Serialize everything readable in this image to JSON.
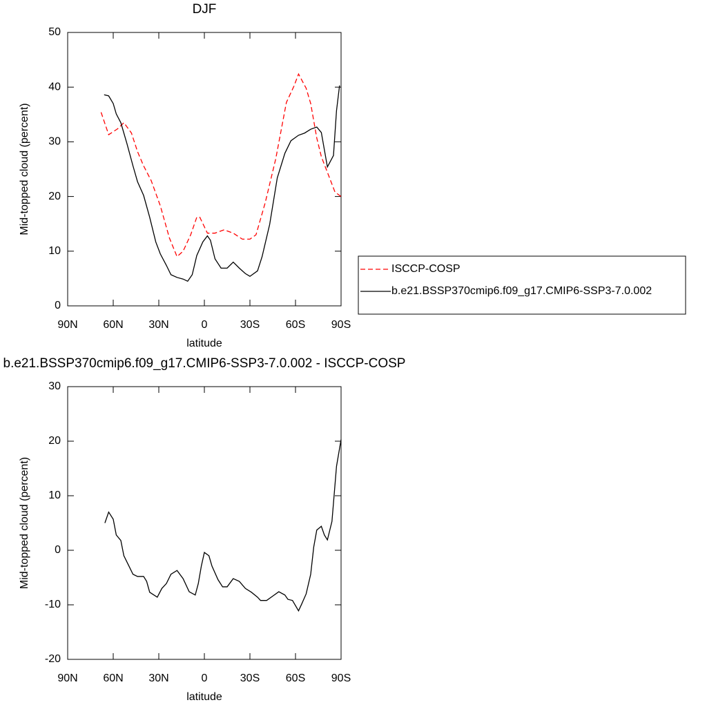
{
  "chart_data": [
    {
      "type": "line",
      "title": "DJF",
      "xlabel": "latitude",
      "ylabel": "Mid-topped cloud (percent)",
      "xlim": [
        90,
        -90
      ],
      "xticks": [
        {
          "value": 90,
          "label": "90N"
        },
        {
          "value": 60,
          "label": "60N"
        },
        {
          "value": 30,
          "label": "30N"
        },
        0,
        {
          "value": -30,
          "label": "30S"
        },
        {
          "value": -60,
          "label": "60S"
        },
        {
          "value": -90,
          "label": "90S"
        }
      ],
      "ylim": [
        0,
        50
      ],
      "yticks": [
        0,
        10,
        20,
        30,
        40,
        50
      ],
      "legend": "right",
      "series": [
        {
          "name": "ISCCP-COSP",
          "color": "#ff0000",
          "line_style": "dashed",
          "x": [
            68,
            63,
            57,
            53,
            48,
            44,
            40,
            35,
            29,
            23,
            18,
            14,
            9,
            5,
            3,
            -2,
            -7,
            -13,
            -19,
            -25,
            -30,
            -34,
            -40,
            -47,
            -54,
            -59,
            -62,
            -67,
            -70,
            -74,
            -77,
            -82,
            -86,
            -90
          ],
          "values": [
            35.4,
            31.3,
            32.4,
            33.5,
            31.6,
            28.2,
            25.6,
            22.9,
            18.3,
            12.4,
            9,
            10,
            13,
            16.2,
            16.2,
            13.3,
            13.3,
            13.9,
            13.3,
            12.2,
            12.2,
            13,
            18.8,
            26.9,
            37.2,
            40.2,
            42.4,
            39.8,
            37,
            30.7,
            27.3,
            23.7,
            20.8,
            20
          ]
        },
        {
          "name": "b.e21.BSSP370cmip6.f09_g17.CMIP6-SSP3-7.0.002",
          "color": "#000000",
          "line_style": "solid",
          "x": [
            66,
            63,
            60,
            58,
            55,
            51,
            47,
            44,
            40,
            36,
            32,
            29,
            25,
            22,
            18,
            14,
            11,
            8,
            5,
            1,
            -2,
            -4,
            -7,
            -11,
            -15,
            -19,
            -23,
            -27,
            -30,
            -35,
            -38,
            -43,
            -48,
            -53,
            -57,
            -62,
            -66,
            -70,
            -74,
            -77,
            -81,
            -85,
            -87,
            -89
          ],
          "values": [
            38.6,
            38.4,
            37,
            35.1,
            33.5,
            29.7,
            25.6,
            22.7,
            20.2,
            16.2,
            11.7,
            9.5,
            7.4,
            5.7,
            5.2,
            4.9,
            4.5,
            5.7,
            9.2,
            11.7,
            12.8,
            12,
            8.6,
            6.9,
            6.9,
            8,
            6.9,
            5.9,
            5.4,
            6.4,
            9,
            14.9,
            23.4,
            27.9,
            30.2,
            31.2,
            31.6,
            32.3,
            32.7,
            31.7,
            25.4,
            27.5,
            35.7,
            40.3
          ]
        }
      ]
    },
    {
      "type": "line",
      "title": "b.e21.BSSP370cmip6.f09_g17.CMIP6-SSP3-7.0.002 - ISCCP-COSP",
      "xlabel": "latitude",
      "ylabel": "Mid-topped cloud (percent)",
      "xlim": [
        90,
        -90
      ],
      "xticks": [
        {
          "value": 90,
          "label": "90N"
        },
        {
          "value": 60,
          "label": "60N"
        },
        {
          "value": 30,
          "label": "30N"
        },
        0,
        {
          "value": -30,
          "label": "30S"
        },
        {
          "value": -60,
          "label": "60S"
        },
        {
          "value": -90,
          "label": "90S"
        }
      ],
      "ylim": [
        -20,
        30
      ],
      "yticks": [
        -20,
        -10,
        0,
        10,
        20,
        30
      ],
      "color": "#000000",
      "x": [
        65.5,
        63,
        60,
        58,
        55,
        53,
        50,
        47,
        44,
        40,
        38,
        36,
        31,
        28,
        25,
        22,
        18,
        14,
        10,
        6,
        4,
        2,
        0,
        -3,
        -5,
        -9,
        -12,
        -15,
        -19,
        -23,
        -27,
        -31,
        -35,
        -37,
        -41,
        -45,
        -49,
        -53,
        -55,
        -58,
        -62,
        -64,
        -67,
        -70,
        -72,
        -74,
        -77,
        -79,
        -81,
        -84,
        -87,
        -90
      ],
      "values": [
        5,
        7,
        5.7,
        2.8,
        1.8,
        -1,
        -2.7,
        -4.4,
        -4.8,
        -4.8,
        -5.7,
        -7.7,
        -8.6,
        -7,
        -6.1,
        -4.4,
        -3.7,
        -5.2,
        -7.6,
        -8.2,
        -6.1,
        -2.9,
        -0.4,
        -1,
        -2.9,
        -5.4,
        -6.7,
        -6.7,
        -5.2,
        -5.7,
        -7,
        -7.7,
        -8.6,
        -9.2,
        -9.2,
        -8.4,
        -7.6,
        -8.2,
        -9,
        -9.2,
        -11.1,
        -9.9,
        -8,
        -4.4,
        0.6,
        3.7,
        4.4,
        2.8,
        1.9,
        5.3,
        15.4,
        20.3
      ]
    }
  ]
}
